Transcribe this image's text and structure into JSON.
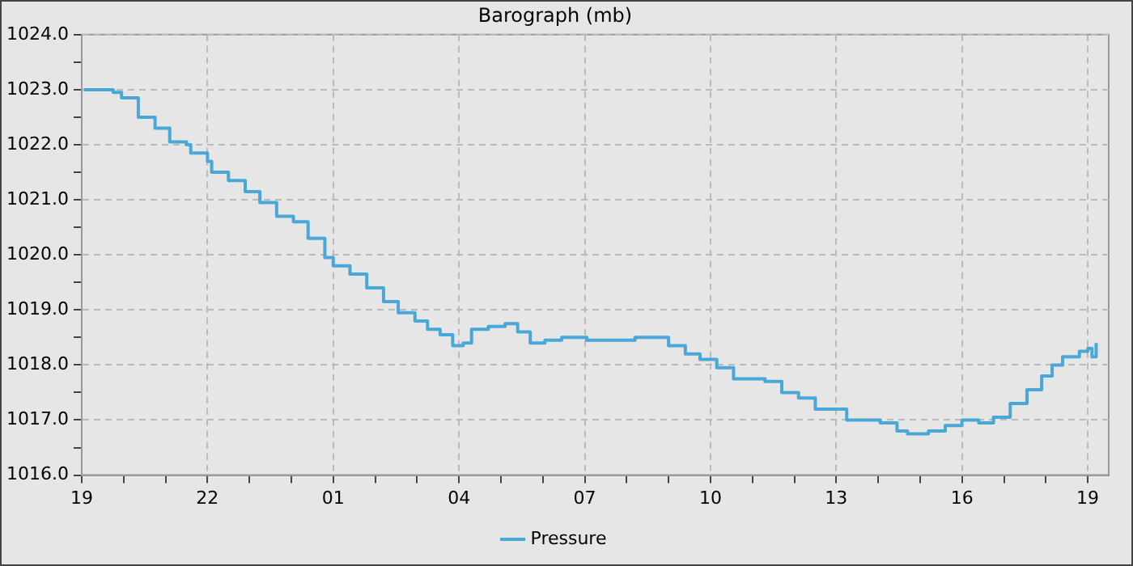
{
  "chart_data": {
    "type": "step",
    "title": "Barograph (mb)",
    "x": [
      "--01-01T19:03",
      "--01-01T19:45",
      "--01-01T19:57",
      "--01-01T20:21",
      "--01-01T20:45",
      "--01-01T21:06",
      "--01-01T21:30",
      "--01-01T21:36",
      "--01-01T22:00",
      "--01-01T22:06",
      "--01-01T22:30",
      "--01-01T22:54",
      "--01-01T23:15",
      "--01-01T23:39",
      "--01-02T00:03",
      "--01-02T00:24",
      "--01-02T00:48",
      "--01-02T01:00",
      "--01-02T01:24",
      "--01-02T01:48",
      "--01-02T02:12",
      "--01-02T02:33",
      "--01-02T02:57",
      "--01-02T03:15",
      "--01-02T03:33",
      "--01-02T03:51",
      "--01-02T04:06",
      "--01-02T04:18",
      "--01-02T04:42",
      "--01-02T05:06",
      "--01-02T05:24",
      "--01-02T05:42",
      "--01-02T06:03",
      "--01-02T06:27",
      "--01-02T07:03",
      "--01-02T07:48",
      "--01-02T08:12",
      "--01-02T08:36",
      "--01-02T09:00",
      "--01-02T09:24",
      "--01-02T09:45",
      "--01-02T10:09",
      "--01-02T10:33",
      "--01-02T10:57",
      "--01-02T11:18",
      "--01-02T11:42",
      "--01-02T12:06",
      "--01-02T12:30",
      "--01-02T12:54",
      "--01-02T13:15",
      "--01-02T13:39",
      "--01-02T14:03",
      "--01-02T14:27",
      "--01-02T14:42",
      "--01-02T15:12",
      "--01-02T15:36",
      "--01-02T16:00",
      "--01-02T16:24",
      "--01-02T16:45",
      "--01-02T17:09",
      "--01-02T17:33",
      "--01-02T17:54",
      "--01-02T18:09",
      "--01-02T18:24",
      "--01-02T18:48",
      "--01-02T19:00",
      "--01-02T19:06",
      "--01-02T19:12"
    ],
    "series": [
      {
        "name": "Pressure",
        "color": "#4aa8d8",
        "values": [
          1023.0,
          1022.95,
          1022.85,
          1022.5,
          1022.3,
          1022.05,
          1022.0,
          1021.85,
          1021.7,
          1021.5,
          1021.35,
          1021.15,
          1020.95,
          1020.7,
          1020.6,
          1020.3,
          1019.95,
          1019.8,
          1019.65,
          1019.4,
          1019.15,
          1018.95,
          1018.8,
          1018.65,
          1018.55,
          1018.35,
          1018.4,
          1018.65,
          1018.7,
          1018.75,
          1018.6,
          1018.4,
          1018.45,
          1018.5,
          1018.45,
          1018.45,
          1018.5,
          1018.5,
          1018.35,
          1018.2,
          1018.1,
          1017.95,
          1017.75,
          1017.75,
          1017.7,
          1017.5,
          1017.4,
          1017.2,
          1017.2,
          1017.0,
          1017.0,
          1016.95,
          1016.8,
          1016.75,
          1016.8,
          1016.9,
          1017.0,
          1016.95,
          1017.05,
          1017.3,
          1017.55,
          1017.8,
          1018.0,
          1018.15,
          1018.25,
          1018.3,
          1018.15,
          1018.4
        ]
      }
    ],
    "xlim": [
      "--01-01T19:00",
      "--01-02T19:30"
    ],
    "xticks": [
      {
        "value": "--01-01T19:00",
        "label": "19"
      },
      {
        "value": "--01-01T20:00",
        "label": null
      },
      {
        "value": "--01-01T21:00",
        "label": null
      },
      {
        "value": "--01-01T22:00",
        "label": "22"
      },
      {
        "value": "--01-01T23:00",
        "label": null
      },
      {
        "value": "--01-02T00:00",
        "label": null
      },
      {
        "value": "--01-02T01:00",
        "label": "01"
      },
      {
        "value": "--01-02T02:00",
        "label": null
      },
      {
        "value": "--01-02T03:00",
        "label": null
      },
      {
        "value": "--01-02T04:00",
        "label": "04"
      },
      {
        "value": "--01-02T05:00",
        "label": null
      },
      {
        "value": "--01-02T06:00",
        "label": null
      },
      {
        "value": "--01-02T07:00",
        "label": "07"
      },
      {
        "value": "--01-02T08:00",
        "label": null
      },
      {
        "value": "--01-02T09:00",
        "label": null
      },
      {
        "value": "--01-02T10:00",
        "label": "10"
      },
      {
        "value": "--01-02T11:00",
        "label": null
      },
      {
        "value": "--01-02T12:00",
        "label": null
      },
      {
        "value": "--01-02T13:00",
        "label": "13"
      },
      {
        "value": "--01-02T14:00",
        "label": null
      },
      {
        "value": "--01-02T15:00",
        "label": null
      },
      {
        "value": "--01-02T16:00",
        "label": "16"
      },
      {
        "value": "--01-02T17:00",
        "label": null
      },
      {
        "value": "--01-02T18:00",
        "label": null
      },
      {
        "value": "--01-02T19:00",
        "label": "19"
      }
    ],
    "ylim": [
      1016,
      1024
    ],
    "yticks": [
      {
        "value": 1016,
        "label": "1016.0"
      },
      {
        "value": 1016.5,
        "label": null
      },
      {
        "value": 1017,
        "label": "1017.0"
      },
      {
        "value": 1017.5,
        "label": null
      },
      {
        "value": 1018,
        "label": "1018.0"
      },
      {
        "value": 1018.5,
        "label": null
      },
      {
        "value": 1019,
        "label": "1019.0"
      },
      {
        "value": 1019.5,
        "label": null
      },
      {
        "value": 1020,
        "label": "1020.0"
      },
      {
        "value": 1020.5,
        "label": null
      },
      {
        "value": 1021,
        "label": "1021.0"
      },
      {
        "value": 1021.5,
        "label": null
      },
      {
        "value": 1022,
        "label": "1022.0"
      },
      {
        "value": 1022.5,
        "label": null
      },
      {
        "value": 1023,
        "label": "1023.0"
      },
      {
        "value": 1023.5,
        "label": null
      },
      {
        "value": 1024,
        "label": "1024.0"
      }
    ],
    "grid": true,
    "legend": "bottom",
    "marker": "none",
    "line_style": "solid"
  }
}
